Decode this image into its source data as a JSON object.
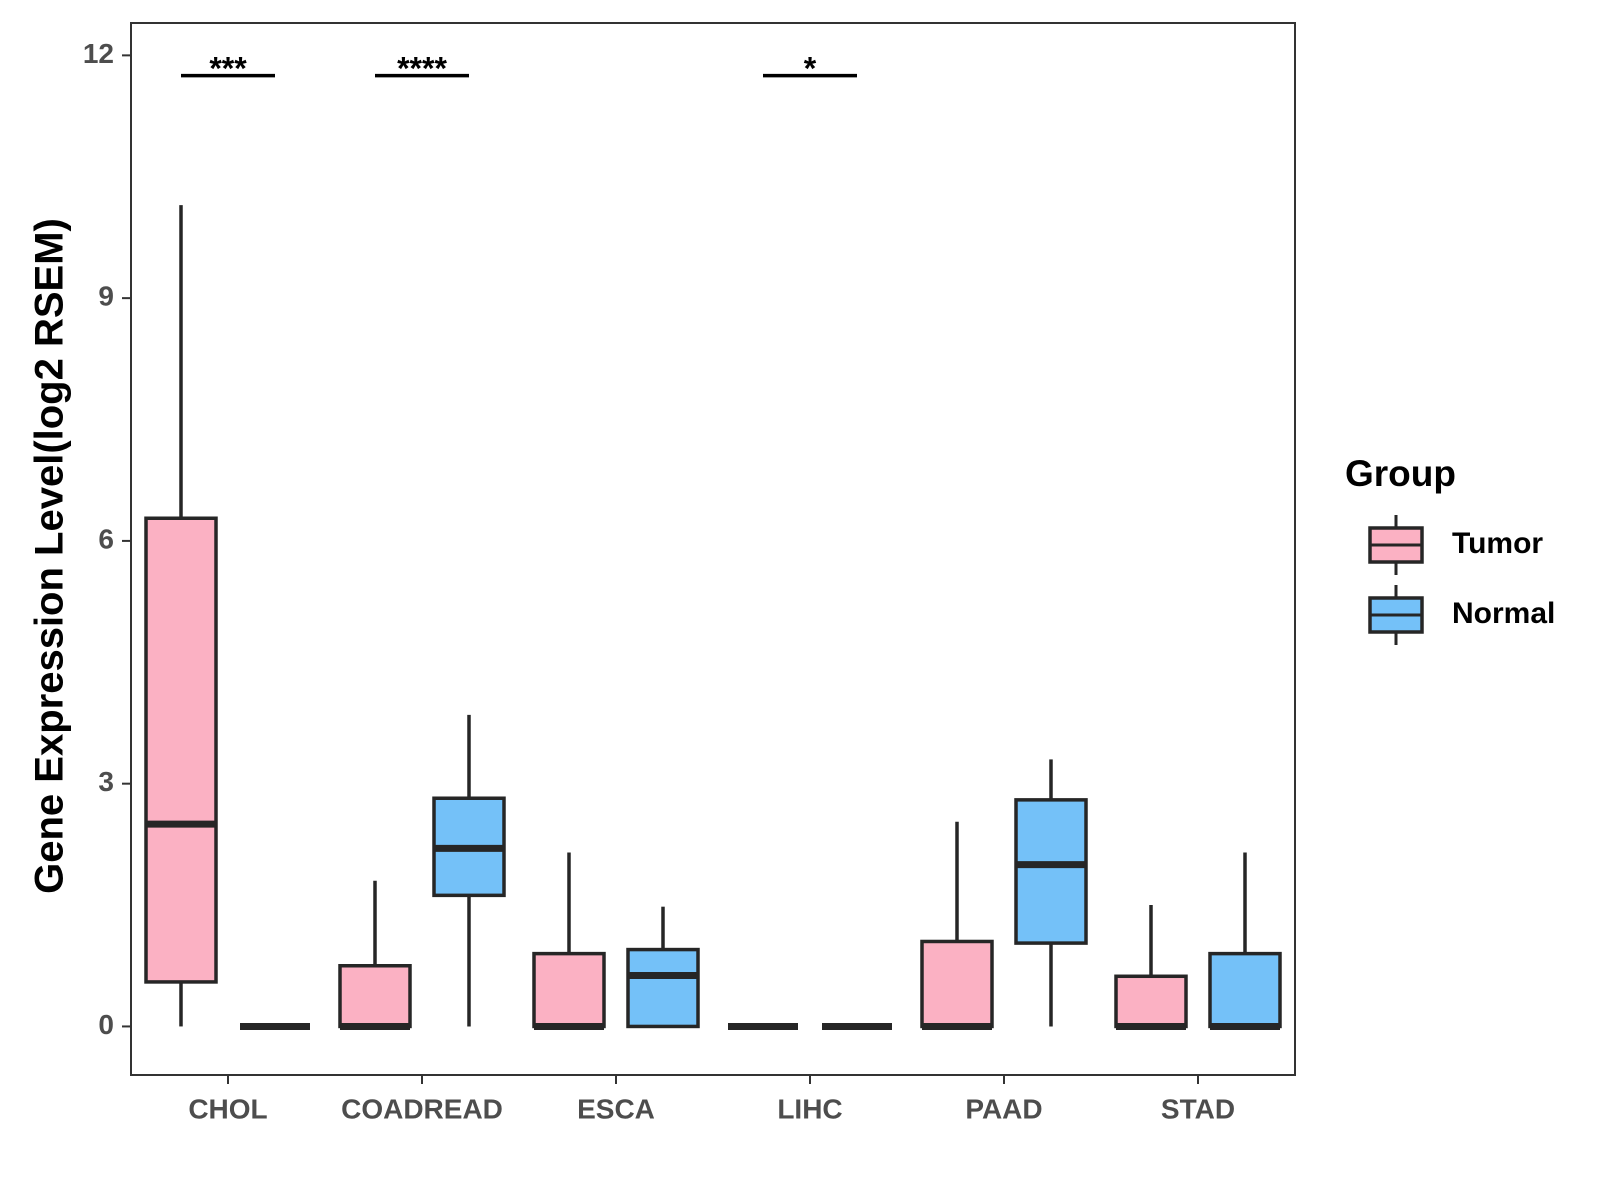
{
  "chart_data": {
    "type": "boxplot",
    "title": "",
    "xlabel": "",
    "ylabel": "Gene Expression Level(log2 RSEM)",
    "ylim": [
      -0.6,
      12.4
    ],
    "yticks": [
      0,
      3,
      6,
      9,
      12
    ],
    "grid": false,
    "categories": [
      "CHOL",
      "COADREAD",
      "ESCA",
      "LIHC",
      "PAAD",
      "STAD"
    ],
    "series": [
      {
        "name": "Tumor",
        "color": "#fbb1c3",
        "boxes": [
          {
            "min": 0,
            "q1": 0.55,
            "median": 2.5,
            "q3": 6.28,
            "max": 10.15
          },
          {
            "min": 0,
            "q1": 0,
            "median": 0,
            "q3": 0.75,
            "max": 1.8
          },
          {
            "min": 0,
            "q1": 0,
            "median": 0,
            "q3": 0.9,
            "max": 2.15
          },
          {
            "min": 0,
            "q1": 0,
            "median": 0,
            "q3": 0,
            "max": 0
          },
          {
            "min": 0,
            "q1": 0,
            "median": 0,
            "q3": 1.05,
            "max": 2.53
          },
          {
            "min": 0,
            "q1": 0,
            "median": 0,
            "q3": 0.62,
            "max": 1.5
          }
        ]
      },
      {
        "name": "Normal",
        "color": "#74c1f8",
        "boxes": [
          {
            "min": 0,
            "q1": 0,
            "median": 0,
            "q3": 0,
            "max": 0
          },
          {
            "min": 0,
            "q1": 1.62,
            "median": 2.2,
            "q3": 2.82,
            "max": 3.85
          },
          {
            "min": 0,
            "q1": 0,
            "median": 0.63,
            "q3": 0.95,
            "max": 1.48
          },
          {
            "min": 0,
            "q1": 0,
            "median": 0,
            "q3": 0,
            "max": 0
          },
          {
            "min": 0,
            "q1": 1.03,
            "median": 2.0,
            "q3": 2.8,
            "max": 3.3
          },
          {
            "min": 0,
            "q1": 0,
            "median": 0,
            "q3": 0.9,
            "max": 2.15
          }
        ]
      }
    ],
    "significance": [
      {
        "category": "CHOL",
        "label": "***",
        "y": 11.75
      },
      {
        "category": "COADREAD",
        "label": "****",
        "y": 11.75
      },
      {
        "category": "LIHC",
        "label": "*",
        "y": 11.75
      }
    ],
    "legend": {
      "title": "Group",
      "position": "right",
      "items": [
        "Tumor",
        "Normal"
      ]
    },
    "colors": {
      "outline": "#262626",
      "axis": "#333333"
    }
  }
}
